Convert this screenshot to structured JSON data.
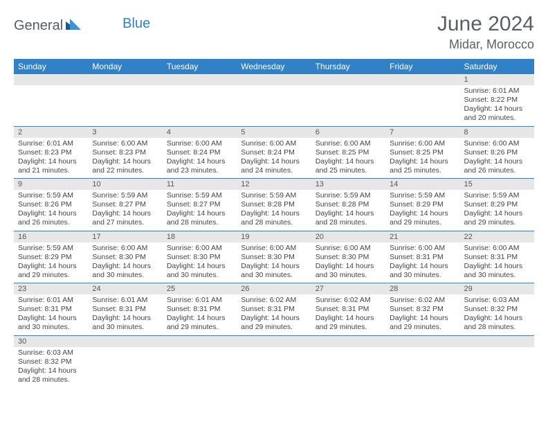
{
  "logo": {
    "text_general": "General",
    "text_blue": "Blue"
  },
  "title": "June 2024",
  "location": "Midar, Morocco",
  "colors": {
    "header_bg": "#3181c6",
    "header_fg": "#ffffff",
    "daynum_bg": "#e7e7e7",
    "row_border": "#3181c6",
    "text": "#444444",
    "title": "#5a5f66"
  },
  "weekdays": [
    "Sunday",
    "Monday",
    "Tuesday",
    "Wednesday",
    "Thursday",
    "Friday",
    "Saturday"
  ],
  "weeks": [
    [
      null,
      null,
      null,
      null,
      null,
      null,
      {
        "n": "1",
        "sr": "6:01 AM",
        "ss": "8:22 PM",
        "dl": "14 hours and 20 minutes."
      }
    ],
    [
      {
        "n": "2",
        "sr": "6:01 AM",
        "ss": "8:23 PM",
        "dl": "14 hours and 21 minutes."
      },
      {
        "n": "3",
        "sr": "6:00 AM",
        "ss": "8:23 PM",
        "dl": "14 hours and 22 minutes."
      },
      {
        "n": "4",
        "sr": "6:00 AM",
        "ss": "8:24 PM",
        "dl": "14 hours and 23 minutes."
      },
      {
        "n": "5",
        "sr": "6:00 AM",
        "ss": "8:24 PM",
        "dl": "14 hours and 24 minutes."
      },
      {
        "n": "6",
        "sr": "6:00 AM",
        "ss": "8:25 PM",
        "dl": "14 hours and 25 minutes."
      },
      {
        "n": "7",
        "sr": "6:00 AM",
        "ss": "8:25 PM",
        "dl": "14 hours and 25 minutes."
      },
      {
        "n": "8",
        "sr": "6:00 AM",
        "ss": "8:26 PM",
        "dl": "14 hours and 26 minutes."
      }
    ],
    [
      {
        "n": "9",
        "sr": "5:59 AM",
        "ss": "8:26 PM",
        "dl": "14 hours and 26 minutes."
      },
      {
        "n": "10",
        "sr": "5:59 AM",
        "ss": "8:27 PM",
        "dl": "14 hours and 27 minutes."
      },
      {
        "n": "11",
        "sr": "5:59 AM",
        "ss": "8:27 PM",
        "dl": "14 hours and 28 minutes."
      },
      {
        "n": "12",
        "sr": "5:59 AM",
        "ss": "8:28 PM",
        "dl": "14 hours and 28 minutes."
      },
      {
        "n": "13",
        "sr": "5:59 AM",
        "ss": "8:28 PM",
        "dl": "14 hours and 28 minutes."
      },
      {
        "n": "14",
        "sr": "5:59 AM",
        "ss": "8:29 PM",
        "dl": "14 hours and 29 minutes."
      },
      {
        "n": "15",
        "sr": "5:59 AM",
        "ss": "8:29 PM",
        "dl": "14 hours and 29 minutes."
      }
    ],
    [
      {
        "n": "16",
        "sr": "5:59 AM",
        "ss": "8:29 PM",
        "dl": "14 hours and 29 minutes."
      },
      {
        "n": "17",
        "sr": "6:00 AM",
        "ss": "8:30 PM",
        "dl": "14 hours and 30 minutes."
      },
      {
        "n": "18",
        "sr": "6:00 AM",
        "ss": "8:30 PM",
        "dl": "14 hours and 30 minutes."
      },
      {
        "n": "19",
        "sr": "6:00 AM",
        "ss": "8:30 PM",
        "dl": "14 hours and 30 minutes."
      },
      {
        "n": "20",
        "sr": "6:00 AM",
        "ss": "8:30 PM",
        "dl": "14 hours and 30 minutes."
      },
      {
        "n": "21",
        "sr": "6:00 AM",
        "ss": "8:31 PM",
        "dl": "14 hours and 30 minutes."
      },
      {
        "n": "22",
        "sr": "6:00 AM",
        "ss": "8:31 PM",
        "dl": "14 hours and 30 minutes."
      }
    ],
    [
      {
        "n": "23",
        "sr": "6:01 AM",
        "ss": "8:31 PM",
        "dl": "14 hours and 30 minutes."
      },
      {
        "n": "24",
        "sr": "6:01 AM",
        "ss": "8:31 PM",
        "dl": "14 hours and 30 minutes."
      },
      {
        "n": "25",
        "sr": "6:01 AM",
        "ss": "8:31 PM",
        "dl": "14 hours and 29 minutes."
      },
      {
        "n": "26",
        "sr": "6:02 AM",
        "ss": "8:31 PM",
        "dl": "14 hours and 29 minutes."
      },
      {
        "n": "27",
        "sr": "6:02 AM",
        "ss": "8:31 PM",
        "dl": "14 hours and 29 minutes."
      },
      {
        "n": "28",
        "sr": "6:02 AM",
        "ss": "8:32 PM",
        "dl": "14 hours and 29 minutes."
      },
      {
        "n": "29",
        "sr": "6:03 AM",
        "ss": "8:32 PM",
        "dl": "14 hours and 28 minutes."
      }
    ],
    [
      {
        "n": "30",
        "sr": "6:03 AM",
        "ss": "8:32 PM",
        "dl": "14 hours and 28 minutes."
      },
      null,
      null,
      null,
      null,
      null,
      null
    ]
  ],
  "labels": {
    "sunrise": "Sunrise:",
    "sunset": "Sunset:",
    "daylight": "Daylight:"
  }
}
